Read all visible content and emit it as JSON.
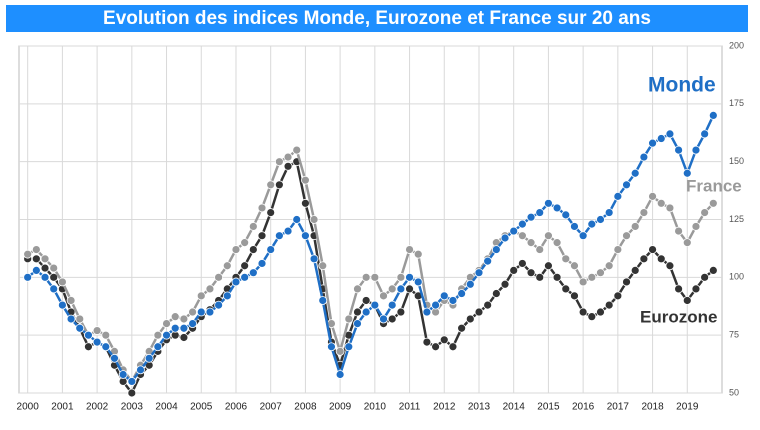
{
  "chart_data": {
    "type": "line",
    "title": "Evolution des indices Monde, Eurozone et France sur 20 ans",
    "x": [
      2000,
      2000.25,
      2000.5,
      2000.75,
      2001,
      2001.25,
      2001.5,
      2001.75,
      2002,
      2002.25,
      2002.5,
      2002.75,
      2003,
      2003.25,
      2003.5,
      2003.75,
      2004,
      2004.25,
      2004.5,
      2004.75,
      2005,
      2005.25,
      2005.5,
      2005.75,
      2006,
      2006.25,
      2006.5,
      2006.75,
      2007,
      2007.25,
      2007.5,
      2007.75,
      2008,
      2008.25,
      2008.5,
      2008.75,
      2009,
      2009.25,
      2009.5,
      2009.75,
      2010,
      2010.25,
      2010.5,
      2010.75,
      2011,
      2011.25,
      2011.5,
      2011.75,
      2012,
      2012.25,
      2012.5,
      2012.75,
      2013,
      2013.25,
      2013.5,
      2013.75,
      2014,
      2014.25,
      2014.5,
      2014.75,
      2015,
      2015.25,
      2015.5,
      2015.75,
      2016,
      2016.25,
      2016.5,
      2016.75,
      2017,
      2017.25,
      2017.5,
      2017.75,
      2018,
      2018.25,
      2018.5,
      2018.75,
      2019,
      2019.25,
      2019.5,
      2019.75
    ],
    "series": [
      {
        "name": "Monde",
        "color": "#1f6fc6",
        "values": [
          100,
          103,
          100,
          95,
          88,
          82,
          78,
          75,
          72,
          70,
          65,
          58,
          55,
          60,
          65,
          70,
          75,
          78,
          78,
          80,
          85,
          85,
          88,
          92,
          98,
          100,
          102,
          106,
          112,
          118,
          120,
          125,
          118,
          108,
          90,
          70,
          58,
          70,
          80,
          85,
          88,
          82,
          88,
          95,
          100,
          98,
          85,
          88,
          92,
          90,
          93,
          97,
          102,
          107,
          112,
          117,
          120,
          123,
          126,
          128,
          132,
          130,
          127,
          122,
          118,
          123,
          125,
          128,
          135,
          140,
          145,
          152,
          158,
          160,
          162,
          155,
          145,
          155,
          162,
          170
        ]
      },
      {
        "name": "France",
        "color": "#9a9a9a",
        "values": [
          110,
          112,
          108,
          104,
          98,
          90,
          82,
          75,
          77,
          75,
          68,
          60,
          55,
          62,
          68,
          75,
          80,
          83,
          82,
          85,
          92,
          95,
          100,
          105,
          112,
          115,
          122,
          130,
          140,
          150,
          152,
          155,
          142,
          125,
          105,
          80,
          68,
          82,
          95,
          100,
          100,
          92,
          95,
          100,
          112,
          110,
          88,
          85,
          90,
          88,
          95,
          100,
          103,
          108,
          115,
          118,
          120,
          118,
          115,
          112,
          118,
          115,
          108,
          105,
          98,
          100,
          102,
          105,
          112,
          118,
          122,
          128,
          135,
          132,
          130,
          120,
          115,
          122,
          128,
          132
        ]
      },
      {
        "name": "Eurozone",
        "color": "#333333",
        "values": [
          108,
          108,
          104,
          100,
          95,
          85,
          78,
          70,
          72,
          70,
          62,
          55,
          50,
          58,
          62,
          68,
          73,
          75,
          74,
          78,
          83,
          86,
          90,
          95,
          100,
          105,
          112,
          118,
          128,
          140,
          148,
          150,
          132,
          118,
          95,
          72,
          62,
          75,
          85,
          90,
          88,
          80,
          82,
          85,
          95,
          92,
          72,
          70,
          73,
          70,
          78,
          82,
          85,
          88,
          93,
          97,
          103,
          106,
          102,
          100,
          105,
          100,
          95,
          92,
          85,
          83,
          85,
          88,
          92,
          98,
          103,
          108,
          112,
          108,
          105,
          95,
          90,
          95,
          100,
          103
        ]
      }
    ],
    "xlim": [
      1999.75,
      2020
    ],
    "xticks": [
      2000,
      2001,
      2002,
      2003,
      2004,
      2005,
      2006,
      2007,
      2008,
      2009,
      2010,
      2011,
      2012,
      2013,
      2014,
      2015,
      2016,
      2017,
      2018,
      2019
    ],
    "ylim": [
      50,
      200
    ],
    "yticks": [
      50,
      75,
      100,
      125,
      150,
      175,
      200
    ],
    "grid": true
  }
}
